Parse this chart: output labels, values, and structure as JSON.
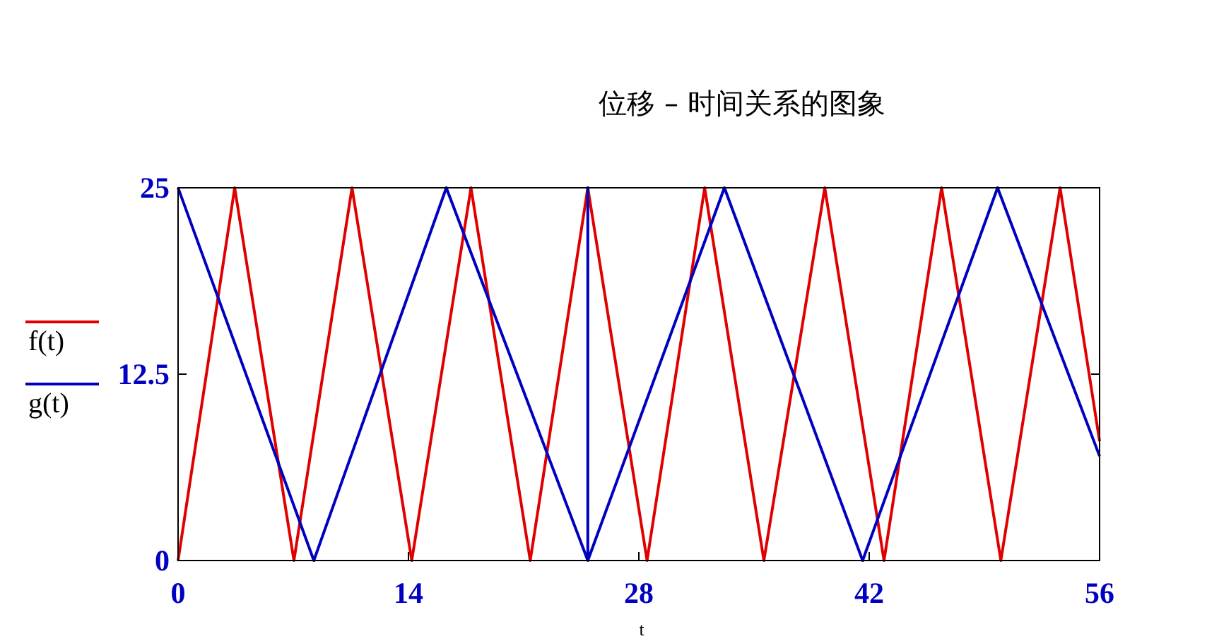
{
  "chart_data": {
    "type": "line",
    "title": "位移 – 时间关系的图象",
    "xlabel": "t",
    "xlim": [
      0,
      56
    ],
    "ylim": [
      0,
      25
    ],
    "xticks": [
      0,
      14,
      28,
      42,
      56
    ],
    "yticks": [
      0,
      12.5,
      25
    ],
    "grid": false,
    "legend": "left",
    "series": [
      {
        "name": "f(t)",
        "color": "#e00000",
        "x": [
          0,
          3.44,
          7.04,
          10.57,
          14.2,
          17.8,
          21.4,
          24.9,
          28.5,
          32.0,
          35.6,
          39.3,
          42.9,
          46.4,
          50.0,
          53.6,
          56
        ],
        "values": [
          0,
          25,
          0,
          25,
          0,
          25,
          0,
          25,
          0,
          25,
          0,
          25,
          0,
          25,
          0,
          25,
          8
        ]
      },
      {
        "name": "g(t)",
        "color": "#0000c0",
        "x": [
          0,
          8.25,
          16.3,
          24.9,
          24.9,
          24.9,
          33.2,
          41.6,
          49.8,
          56
        ],
        "values": [
          25,
          0,
          25,
          0,
          25,
          0,
          25,
          0,
          25,
          7
        ]
      }
    ]
  }
}
